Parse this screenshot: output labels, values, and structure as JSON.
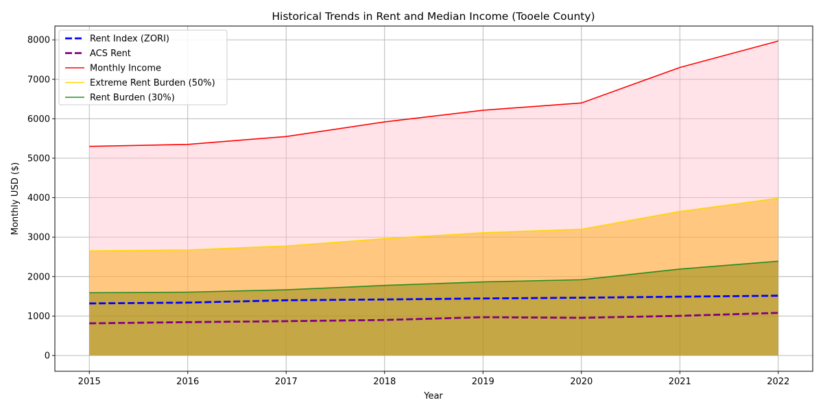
{
  "chart_data": {
    "type": "area",
    "title": "Historical Trends in Rent and Median Income (Tooele County)",
    "xlabel": "Year",
    "ylabel": "Monthly USD ($)",
    "x": [
      2015,
      2016,
      2017,
      2018,
      2019,
      2020,
      2021,
      2022
    ],
    "xlim": [
      2014.65,
      2022.35
    ],
    "ylim": [
      -400,
      8350
    ],
    "yticks": [
      0,
      1000,
      2000,
      3000,
      4000,
      5000,
      6000,
      7000,
      8000
    ],
    "grid": true,
    "legend_position": "top-left",
    "series": [
      {
        "name": "Rent Index (ZORI)",
        "values": [
          1320,
          1340,
          1400,
          1420,
          1445,
          1465,
          1490,
          1515
        ],
        "color": "#0000ff",
        "style": "dashed",
        "fill": false
      },
      {
        "name": "ACS Rent",
        "values": [
          815,
          845,
          870,
          900,
          970,
          955,
          1005,
          1080
        ],
        "color": "#800080",
        "style": "dashed",
        "fill": false
      },
      {
        "name": "Monthly Income",
        "values": [
          5300,
          5350,
          5550,
          5920,
          6215,
          6400,
          7300,
          7970
        ],
        "color": "#ff0000",
        "style": "solid",
        "fill": "#ffc0cb"
      },
      {
        "name": "Extreme Rent Burden (50%)",
        "values": [
          2650,
          2675,
          2775,
          2960,
          3110,
          3200,
          3650,
          3985
        ],
        "color": "#ffd700",
        "style": "solid",
        "fill": "#ffa500"
      },
      {
        "name": "Rent Burden (30%)",
        "values": [
          1590,
          1605,
          1665,
          1775,
          1865,
          1920,
          2190,
          2390
        ],
        "color": "#228b22",
        "style": "solid",
        "fill": "#808000"
      }
    ]
  }
}
